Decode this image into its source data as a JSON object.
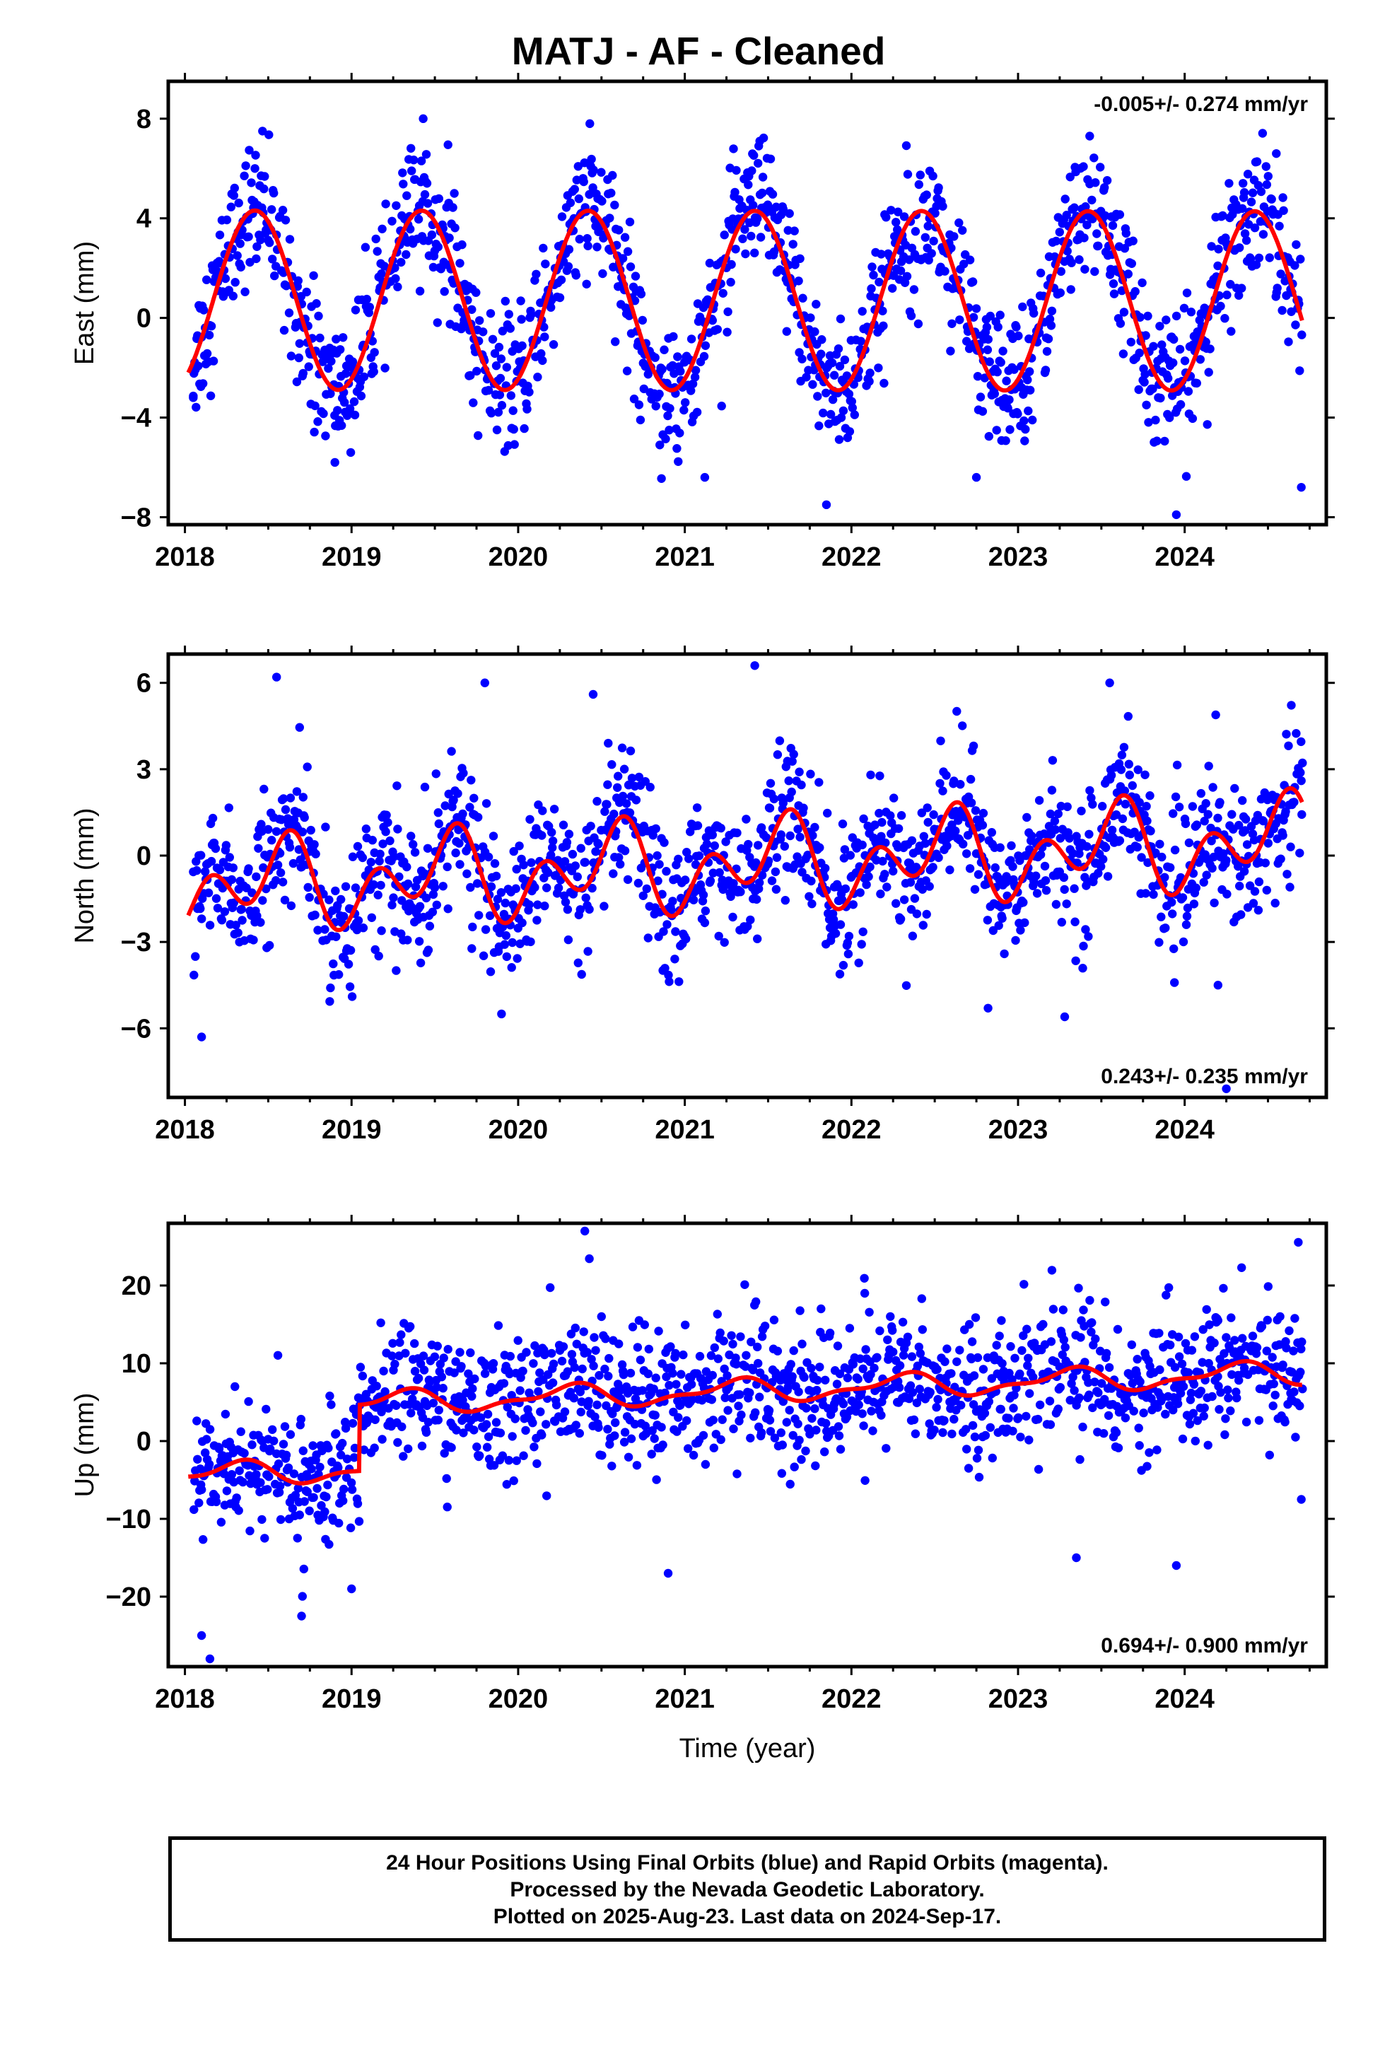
{
  "title": "MATJ  - AF - Cleaned",
  "footer": {
    "line1": "24 Hour Positions Using Final Orbits (blue) and Rapid Orbits (magenta).",
    "line2": "Processed by the Nevada Geodetic Laboratory.",
    "line3": "Plotted on 2025-Aug-23. Last data on 2024-Sep-17."
  },
  "chart_data": [
    {
      "type": "scatter",
      "ylabel": "East (mm)",
      "xlabel": "",
      "xlim": [
        2017.9,
        2024.85
      ],
      "ylim": [
        -8.3,
        9.5
      ],
      "xticks": [
        "2018",
        "2019",
        "2020",
        "2021",
        "2022",
        "2023",
        "2024"
      ],
      "yticks": [
        "8",
        "4",
        "0",
        "−4",
        "−8"
      ],
      "ytick_values": [
        8,
        4,
        0,
        -4,
        -8
      ],
      "rate": "-0.005+/- 0.274 mm/yr",
      "rate_position": "top-right",
      "point_color": "#0000ff",
      "line_color": "#ff0000",
      "data_end": 2024.71,
      "data_gaps": [],
      "model": {
        "offset": 0.7,
        "amp1": 3.6,
        "amp2": 0.0,
        "peak": 0.42,
        "trend": -0.005,
        "steps": [],
        "curve_end": 2024.71
      },
      "points": [
        [
          2018.05,
          -3.2
        ],
        [
          2018.42,
          6.0
        ],
        [
          2018.9,
          -5.8
        ],
        [
          2019.43,
          8.0
        ],
        [
          2020.43,
          7.8
        ],
        [
          2020.85,
          -5.1
        ],
        [
          2021.12,
          -6.4
        ],
        [
          2021.45,
          7.1
        ],
        [
          2021.85,
          -7.5
        ],
        [
          2022.47,
          5.9
        ],
        [
          2022.75,
          -6.4
        ],
        [
          2023.43,
          7.3
        ],
        [
          2023.95,
          -7.9
        ],
        [
          2024.55,
          6.6
        ],
        [
          2024.7,
          -6.8
        ]
      ]
    },
    {
      "type": "scatter",
      "ylabel": "North (mm)",
      "xlabel": "",
      "xlim": [
        2017.9,
        2024.85
      ],
      "ylim": [
        -8.4,
        7.0
      ],
      "xticks": [
        "2018",
        "2019",
        "2020",
        "2021",
        "2022",
        "2023",
        "2024"
      ],
      "yticks": [
        "6",
        "3",
        "0",
        "−3",
        "−6"
      ],
      "ytick_values": [
        6,
        3,
        0,
        -3,
        -6
      ],
      "rate": "0.243+/- 0.235 mm/yr",
      "rate_position": "bottom-right",
      "point_color": "#0000ff",
      "line_color": "#ff0000",
      "data_end": 2024.71,
      "data_gaps": [],
      "model": {
        "offset": -0.4,
        "amp1": 0.9,
        "amp2": 1.1,
        "peak": 0.55,
        "trend": 0.243,
        "steps": [],
        "curve_end": 2024.71
      },
      "points": [
        [
          2018.1,
          -6.3
        ],
        [
          2018.55,
          6.2
        ],
        [
          2019.8,
          6.0
        ],
        [
          2019.9,
          -5.5
        ],
        [
          2020.45,
          5.6
        ],
        [
          2021.42,
          6.6
        ],
        [
          2022.82,
          -5.3
        ],
        [
          2023.28,
          -5.6
        ],
        [
          2023.55,
          6.0
        ],
        [
          2024.2,
          -4.5
        ],
        [
          2024.25,
          -8.1
        ],
        [
          2024.7,
          2.6
        ]
      ]
    },
    {
      "type": "scatter",
      "ylabel": "Up (mm)",
      "xlabel": "Time (year)",
      "xlim": [
        2017.9,
        2024.85
      ],
      "ylim": [
        -29,
        28
      ],
      "xticks": [
        "2018",
        "2019",
        "2020",
        "2021",
        "2022",
        "2023",
        "2024"
      ],
      "yticks": [
        "20",
        "10",
        "0",
        "−10",
        "−20"
      ],
      "ytick_values": [
        20,
        10,
        0,
        -10,
        -20
      ],
      "rate": "0.694+/- 0.900 mm/yr",
      "rate_position": "bottom-right",
      "point_color": "#0000ff",
      "line_color": "#ff0000",
      "data_end": 2024.71,
      "data_gaps": [],
      "model": {
        "offset": -2.3,
        "amp1": 1.3,
        "amp2": 0.6,
        "peak": 0.3,
        "trend": 0.694,
        "steps": [
          [
            2019.05,
            8.5
          ]
        ],
        "curve_end": 2024.71
      },
      "points": [
        [
          2018.1,
          -25
        ],
        [
          2018.15,
          -28
        ],
        [
          2018.3,
          7
        ],
        [
          2018.7,
          -22.5
        ],
        [
          2019.0,
          -19
        ],
        [
          2020.4,
          27
        ],
        [
          2020.5,
          16
        ],
        [
          2020.9,
          -17
        ],
        [
          2022.08,
          19
        ],
        [
          2022.9,
          15.5
        ],
        [
          2023.15,
          15
        ],
        [
          2023.35,
          -15
        ],
        [
          2023.95,
          -16
        ],
        [
          2024.2,
          15.5
        ],
        [
          2024.7,
          -7.5
        ]
      ]
    }
  ]
}
